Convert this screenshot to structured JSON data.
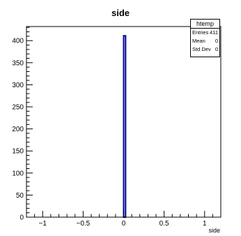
{
  "chart_data": {
    "type": "bar",
    "title": "side",
    "xlabel": "side",
    "ylabel": "",
    "xlim": [
      -1.2,
      1.2
    ],
    "ylim": [
      0,
      432
    ],
    "x_ticks": [
      -1,
      -0.5,
      0,
      0.5,
      1
    ],
    "x_tick_labels": [
      "−1",
      "−0.5",
      "0",
      "0.5",
      "1"
    ],
    "y_ticks": [
      0,
      50,
      100,
      150,
      200,
      250,
      300,
      350,
      400
    ],
    "y_tick_labels": [
      "0",
      "50",
      "100",
      "150",
      "200",
      "250",
      "300",
      "350",
      "400"
    ],
    "bins": [
      {
        "x_low": 0.0,
        "x_high": 0.024,
        "value": 411
      }
    ],
    "bar_fill": "#ffffff",
    "bar_edge": "#000099",
    "legend": "top-right",
    "grid": false
  },
  "stats": {
    "title": "htemp",
    "rows": [
      {
        "label": "Entries",
        "value": "411"
      },
      {
        "label": "Mean",
        "value": "0"
      },
      {
        "label": "Std Dev",
        "value": "0"
      }
    ]
  }
}
